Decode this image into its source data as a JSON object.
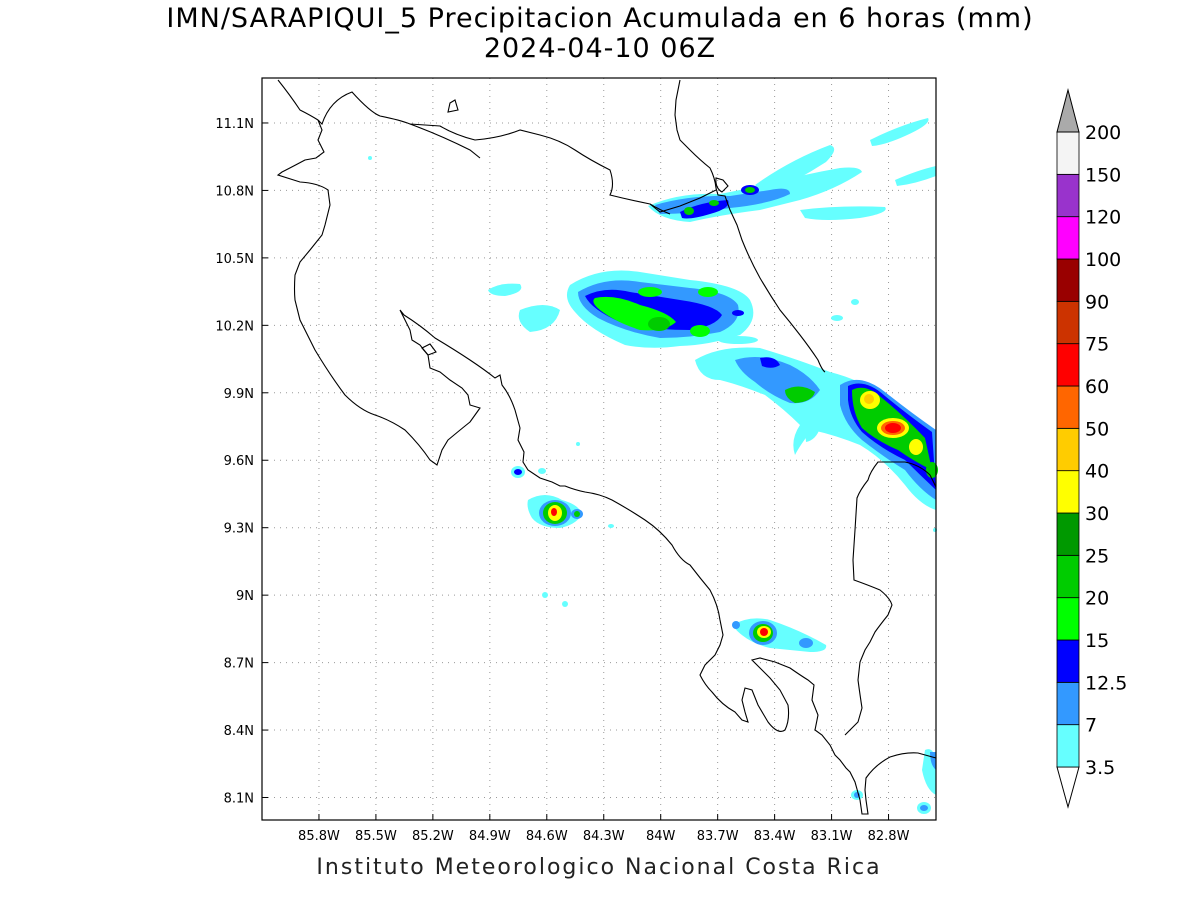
{
  "header": {
    "title_line1": "IMN/SARAPIQUI_5 Precipitacion Acumulada en 6 horas (mm)",
    "title_line2": "2024-04-10 06Z"
  },
  "footer": {
    "credit": "Instituto Meteorologico Nacional Costa Rica"
  },
  "map": {
    "lon_range": [
      -86.1,
      -82.55
    ],
    "lat_range": [
      8.0,
      11.3
    ],
    "lon_ticks": [
      {
        "value": -85.8,
        "label": "85.8W"
      },
      {
        "value": -85.5,
        "label": "85.5W"
      },
      {
        "value": -85.2,
        "label": "85.2W"
      },
      {
        "value": -84.9,
        "label": "84.9W"
      },
      {
        "value": -84.6,
        "label": "84.6W"
      },
      {
        "value": -84.3,
        "label": "84.3W"
      },
      {
        "value": -84.0,
        "label": "84W"
      },
      {
        "value": -83.7,
        "label": "83.7W"
      },
      {
        "value": -83.4,
        "label": "83.4W"
      },
      {
        "value": -83.1,
        "label": "83.1W"
      },
      {
        "value": -82.8,
        "label": "82.8W"
      }
    ],
    "lat_ticks": [
      {
        "value": 8.1,
        "label": "8.1N"
      },
      {
        "value": 8.4,
        "label": "8.4N"
      },
      {
        "value": 8.7,
        "label": "8.7N"
      },
      {
        "value": 9.0,
        "label": "9N"
      },
      {
        "value": 9.3,
        "label": "9.3N"
      },
      {
        "value": 9.6,
        "label": "9.6N"
      },
      {
        "value": 9.9,
        "label": "9.9N"
      },
      {
        "value": 10.2,
        "label": "10.2N"
      },
      {
        "value": 10.5,
        "label": "10.5N"
      },
      {
        "value": 10.8,
        "label": "10.8N"
      },
      {
        "value": 11.1,
        "label": "11.1N"
      }
    ],
    "grid": "dotted"
  },
  "colorbar": {
    "levels": [
      {
        "label": "3.5",
        "color": "#66ffff"
      },
      {
        "label": "7",
        "color": "#3399ff"
      },
      {
        "label": "12.5",
        "color": "#0000ff"
      },
      {
        "label": "15",
        "color": "#00ff00"
      },
      {
        "label": "20",
        "color": "#00cc00"
      },
      {
        "label": "25",
        "color": "#009900"
      },
      {
        "label": "30",
        "color": "#ffff00"
      },
      {
        "label": "40",
        "color": "#ffcc00"
      },
      {
        "label": "50",
        "color": "#ff6600"
      },
      {
        "label": "60",
        "color": "#ff0000"
      },
      {
        "label": "75",
        "color": "#cc3300"
      },
      {
        "label": "90",
        "color": "#990000"
      },
      {
        "label": "100",
        "color": "#ff00ff"
      },
      {
        "label": "120",
        "color": "#9933cc"
      },
      {
        "label": "150",
        "color": "#f4f4f4"
      },
      {
        "label": "200",
        "color": "#aaaaaa"
      }
    ]
  }
}
